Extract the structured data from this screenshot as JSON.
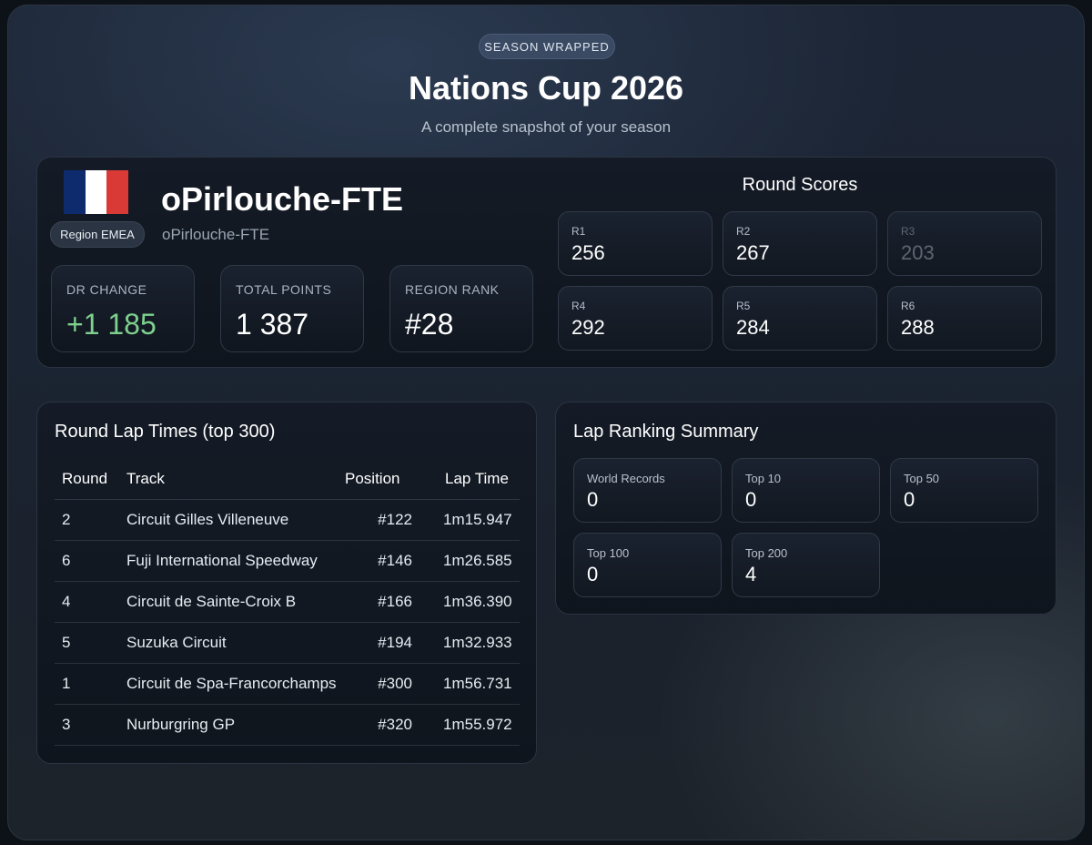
{
  "header": {
    "tag": "SEASON WRAPPED",
    "title": "Nations Cup 2026",
    "subtitle": "A complete snapshot of your season"
  },
  "player": {
    "flag_icon": "france-flag-icon",
    "flag_colors": [
      "#0e2b6e",
      "#ffffff",
      "#d93a36"
    ],
    "region": "Region EMEA",
    "name": "oPirlouche-FTE",
    "handle": "oPirlouche-FTE"
  },
  "stats": [
    {
      "label": "DR CHANGE",
      "value": "+1 185",
      "color": "#7ed08e"
    },
    {
      "label": "TOTAL POINTS",
      "value": "1 387"
    },
    {
      "label": "REGION RANK",
      "value": "#28"
    }
  ],
  "round_scores": {
    "heading": "Round Scores",
    "rounds": [
      {
        "label": "R1",
        "value": "256"
      },
      {
        "label": "R2",
        "value": "267"
      },
      {
        "label": "R3",
        "value": "203",
        "dimmed": true
      },
      {
        "label": "R4",
        "value": "292"
      },
      {
        "label": "R5",
        "value": "284"
      },
      {
        "label": "R6",
        "value": "288"
      }
    ]
  },
  "lap_times": {
    "heading": "Round Lap Times (top 300)",
    "columns": [
      "Round",
      "Track",
      "Position",
      "Lap Time"
    ],
    "rows": [
      {
        "round": "2",
        "track": "Circuit Gilles Villeneuve",
        "position": "#122",
        "time": "1m15.947"
      },
      {
        "round": "6",
        "track": "Fuji International Speedway",
        "position": "#146",
        "time": "1m26.585"
      },
      {
        "round": "4",
        "track": "Circuit de Sainte-Croix B",
        "position": "#166",
        "time": "1m36.390"
      },
      {
        "round": "5",
        "track": "Suzuka Circuit",
        "position": "#194",
        "time": "1m32.933"
      },
      {
        "round": "1",
        "track": "Circuit de Spa-Francorchamps",
        "position": "#300",
        "time": "1m56.731"
      },
      {
        "round": "3",
        "track": "Nurburgring GP",
        "position": "#320",
        "time": "1m55.972"
      }
    ]
  },
  "lap_ranking": {
    "heading": "Lap Ranking Summary",
    "items": [
      {
        "label": "World Records",
        "value": "0"
      },
      {
        "label": "Top 10",
        "value": "0"
      },
      {
        "label": "Top 50",
        "value": "0"
      },
      {
        "label": "Top 100",
        "value": "0"
      },
      {
        "label": "Top 200",
        "value": "4"
      }
    ]
  }
}
